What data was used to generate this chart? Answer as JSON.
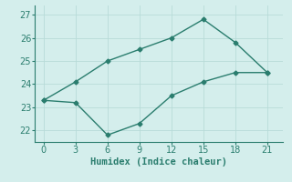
{
  "line1_x": [
    0,
    3,
    6,
    9,
    12,
    15,
    18,
    21
  ],
  "line1_y": [
    23.3,
    24.1,
    25.0,
    25.5,
    26.0,
    26.8,
    25.8,
    24.5
  ],
  "line2_x": [
    0,
    3,
    6,
    9,
    12,
    15,
    18,
    21
  ],
  "line2_y": [
    23.3,
    23.2,
    21.8,
    22.3,
    23.5,
    24.1,
    24.5,
    24.5
  ],
  "line_color": "#2a7d6e",
  "bg_color": "#d4eeec",
  "grid_color": "#b8dbd8",
  "xlabel": "Humidex (Indice chaleur)",
  "xlim": [
    -0.8,
    22.5
  ],
  "ylim": [
    21.5,
    27.4
  ],
  "xticks": [
    0,
    3,
    6,
    9,
    12,
    15,
    18,
    21
  ],
  "yticks": [
    22,
    23,
    24,
    25,
    26,
    27
  ],
  "xlabel_fontsize": 7.5,
  "tick_fontsize": 7,
  "linewidth": 1.0,
  "marker": "D",
  "marker_size": 2.5
}
